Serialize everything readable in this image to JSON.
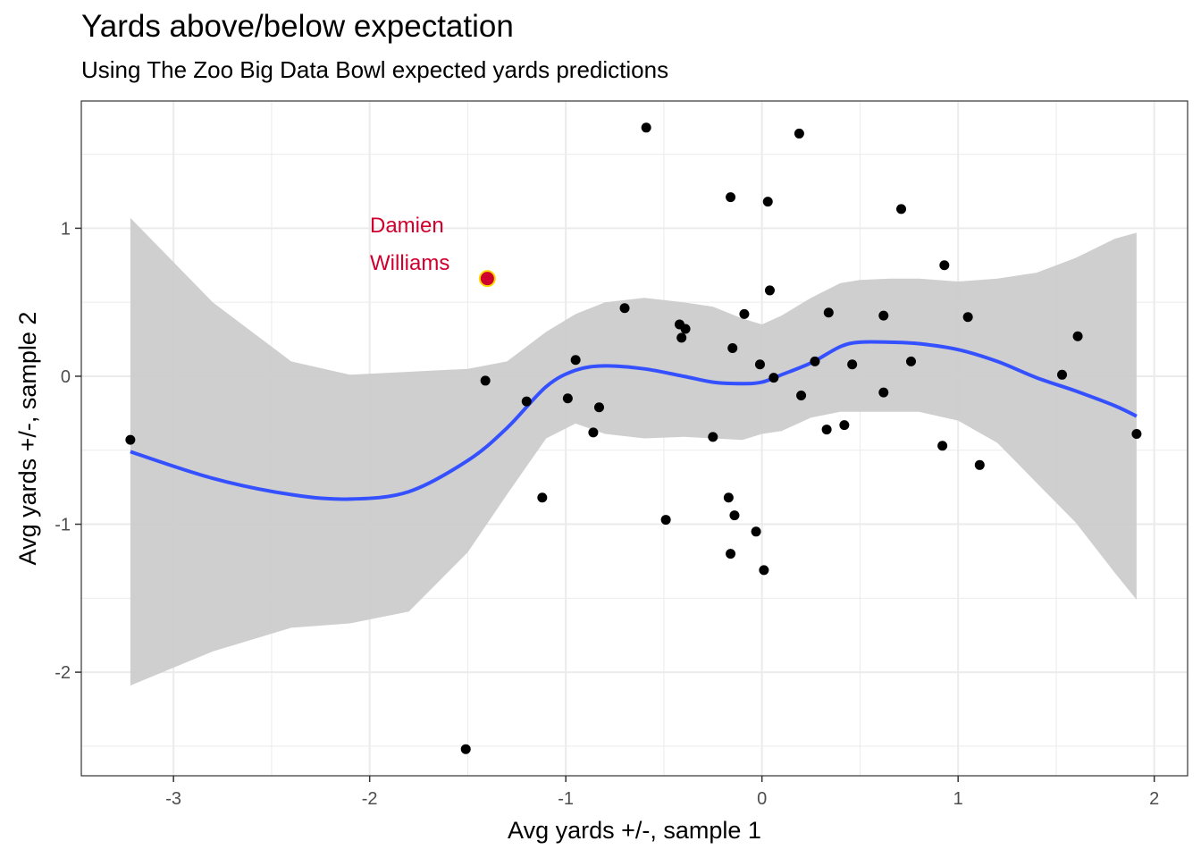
{
  "chart_data": {
    "type": "scatter",
    "title": "Yards above/below expectation",
    "subtitle": "Using The Zoo Big Data Bowl expected yards predictions",
    "xlabel": "Avg yards +/-, sample 1",
    "ylabel": "Avg yards +/-, sample 2",
    "xlim": [
      -3.47,
      2.17
    ],
    "ylim": [
      -2.7,
      1.86
    ],
    "x_ticks": [
      -3,
      -2,
      -1,
      0,
      1,
      2
    ],
    "x_tick_labels": [
      "-3",
      "-2",
      "-1",
      "0",
      "1",
      "2"
    ],
    "y_ticks": [
      -2,
      -1,
      0,
      1
    ],
    "y_tick_labels": [
      "-2",
      "-1",
      "0",
      "1"
    ],
    "grid": true,
    "points": [
      {
        "x": -3.22,
        "y": -0.43
      },
      {
        "x": -1.51,
        "y": -2.52
      },
      {
        "x": -1.41,
        "y": -0.03
      },
      {
        "x": -1.2,
        "y": -0.17
      },
      {
        "x": -1.12,
        "y": -0.82
      },
      {
        "x": -0.99,
        "y": -0.15
      },
      {
        "x": -0.95,
        "y": 0.11
      },
      {
        "x": -0.86,
        "y": -0.38
      },
      {
        "x": -0.83,
        "y": -0.21
      },
      {
        "x": -0.7,
        "y": 0.46
      },
      {
        "x": -0.59,
        "y": 1.68
      },
      {
        "x": -0.49,
        "y": -0.97
      },
      {
        "x": -0.42,
        "y": 0.35
      },
      {
        "x": -0.41,
        "y": 0.26
      },
      {
        "x": -0.39,
        "y": 0.32
      },
      {
        "x": -0.25,
        "y": -0.41
      },
      {
        "x": -0.17,
        "y": -0.82
      },
      {
        "x": -0.16,
        "y": 1.21
      },
      {
        "x": -0.16,
        "y": -1.2
      },
      {
        "x": -0.15,
        "y": 0.19
      },
      {
        "x": -0.14,
        "y": -0.94
      },
      {
        "x": -0.09,
        "y": 0.42
      },
      {
        "x": -0.03,
        "y": -1.05
      },
      {
        "x": -0.01,
        "y": 0.08
      },
      {
        "x": 0.01,
        "y": -1.31
      },
      {
        "x": 0.03,
        "y": 1.18
      },
      {
        "x": 0.04,
        "y": 0.58
      },
      {
        "x": 0.06,
        "y": -0.01
      },
      {
        "x": 0.19,
        "y": 1.64
      },
      {
        "x": 0.2,
        "y": -0.13
      },
      {
        "x": 0.27,
        "y": 0.1
      },
      {
        "x": 0.33,
        "y": -0.36
      },
      {
        "x": 0.34,
        "y": 0.43
      },
      {
        "x": 0.42,
        "y": -0.33
      },
      {
        "x": 0.46,
        "y": 0.08
      },
      {
        "x": 0.62,
        "y": 0.41
      },
      {
        "x": 0.62,
        "y": -0.11
      },
      {
        "x": 0.71,
        "y": 1.13
      },
      {
        "x": 0.76,
        "y": 0.1
      },
      {
        "x": 0.92,
        "y": -0.47
      },
      {
        "x": 0.93,
        "y": 0.75
      },
      {
        "x": 1.05,
        "y": 0.4
      },
      {
        "x": 1.11,
        "y": -0.6
      },
      {
        "x": 1.53,
        "y": 0.01
      },
      {
        "x": 1.61,
        "y": 0.27
      },
      {
        "x": 1.91,
        "y": -0.39
      }
    ],
    "highlight": {
      "x": -1.4,
      "y": 0.66,
      "label_lines": [
        "Damien",
        "Williams"
      ],
      "color": "#d0002e",
      "outline": "#ffd700"
    },
    "smooth": {
      "x": [
        -3.22,
        -2.8,
        -2.4,
        -2.1,
        -1.8,
        -1.5,
        -1.3,
        -1.1,
        -0.95,
        -0.8,
        -0.6,
        -0.4,
        -0.25,
        -0.1,
        0.0,
        0.1,
        0.25,
        0.4,
        0.5,
        0.65,
        0.8,
        1.0,
        1.2,
        1.4,
        1.6,
        1.8,
        1.91
      ],
      "y": [
        -0.51,
        -0.69,
        -0.8,
        -0.83,
        -0.78,
        -0.57,
        -0.35,
        -0.07,
        0.04,
        0.07,
        0.05,
        0.0,
        -0.04,
        -0.05,
        -0.04,
        0.01,
        0.09,
        0.2,
        0.23,
        0.23,
        0.22,
        0.18,
        0.1,
        -0.01,
        -0.1,
        -0.2,
        -0.27
      ],
      "upper": [
        1.07,
        0.5,
        0.1,
        0.01,
        0.03,
        0.05,
        0.1,
        0.3,
        0.42,
        0.5,
        0.53,
        0.5,
        0.47,
        0.39,
        0.35,
        0.41,
        0.53,
        0.63,
        0.65,
        0.66,
        0.66,
        0.64,
        0.66,
        0.7,
        0.8,
        0.93,
        0.97
      ],
      "lower": [
        -2.09,
        -1.86,
        -1.7,
        -1.67,
        -1.59,
        -1.19,
        -0.8,
        -0.42,
        -0.32,
        -0.39,
        -0.42,
        -0.41,
        -0.42,
        -0.43,
        -0.39,
        -0.37,
        -0.28,
        -0.24,
        -0.24,
        -0.24,
        -0.24,
        -0.3,
        -0.45,
        -0.72,
        -0.99,
        -1.33,
        -1.51
      ],
      "line_color": "#3550ff",
      "band_color": "#cccccc"
    },
    "point_color": "#000000",
    "panel_border_color": "#333333",
    "grid_color": "#ebebeb"
  }
}
